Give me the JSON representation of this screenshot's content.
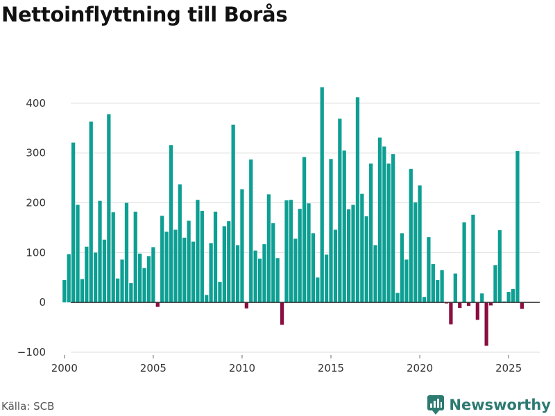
{
  "title": "Nettoinflyttning till Borås",
  "source": "Källa: SCB",
  "brand": "Newsworthy",
  "colors": {
    "positive": "#0e9f93",
    "negative": "#8a0e40",
    "grid": "#dddddd",
    "axis": "#333333",
    "brand": "#2c7a70"
  },
  "chart_data": {
    "type": "bar",
    "title": "Nettoinflyttning till Borås",
    "xlabel": "",
    "ylabel": "",
    "ylim": [
      -100,
      450
    ],
    "yticks": [
      -100,
      0,
      100,
      200,
      300,
      400
    ],
    "ytick_labels": [
      "−100",
      "0",
      "100",
      "200",
      "300",
      "400"
    ],
    "xlim": [
      1999.5,
      2026.75
    ],
    "xticks": [
      2000,
      2005,
      2010,
      2015,
      2020,
      2025
    ],
    "xtick_labels": [
      "2000",
      "2005",
      "2010",
      "2015",
      "2020",
      "2025"
    ],
    "start_year": 2000,
    "frequency": "quarterly",
    "values": [
      45,
      97,
      321,
      196,
      47,
      112,
      363,
      100,
      204,
      126,
      378,
      181,
      48,
      86,
      200,
      39,
      182,
      98,
      69,
      93,
      111,
      -9,
      174,
      142,
      316,
      146,
      237,
      130,
      164,
      122,
      206,
      184,
      15,
      119,
      182,
      41,
      153,
      163,
      357,
      115,
      227,
      -12,
      287,
      104,
      88,
      117,
      217,
      159,
      89,
      -45,
      205,
      206,
      128,
      188,
      292,
      199,
      139,
      50,
      432,
      96,
      288,
      146,
      369,
      305,
      187,
      196,
      412,
      218,
      173,
      279,
      115,
      331,
      313,
      279,
      298,
      19,
      139,
      86,
      268,
      201,
      235,
      11,
      131,
      77,
      45,
      65,
      -2,
      -44,
      58,
      -11,
      161,
      -7,
      176,
      -35,
      18,
      -87,
      -6,
      75,
      145,
      2,
      21,
      27,
      304,
      -13
    ]
  }
}
